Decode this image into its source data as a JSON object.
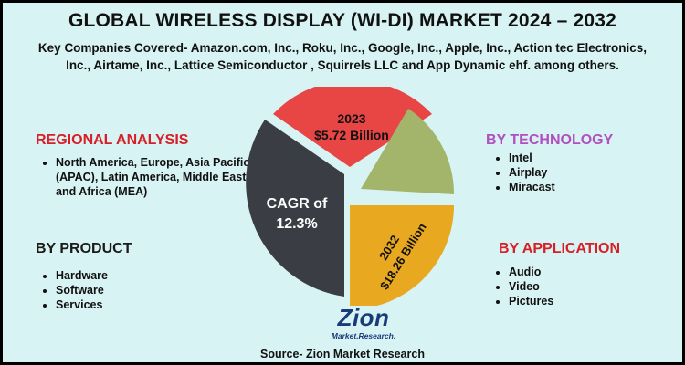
{
  "title": "GLOBAL WIRELESS DISPLAY (WI-DI) MARKET 2024 – 2032",
  "subtitle_line1": "Key Companies Covered- Amazon.com, Inc., Roku, Inc., Google, Inc., Apple, Inc., Action tec Electronics,",
  "subtitle_line2": "Inc., Airtame, Inc., Lattice Semiconductor , Squirrels LLC and App Dynamic ehf. among others.",
  "regional": {
    "heading": "REGIONAL ANALYSIS",
    "items": [
      "North America, Europe, Asia Pacific (APAC), Latin America, Middle East, and Africa (MEA)"
    ]
  },
  "product": {
    "heading": "BY PRODUCT",
    "items": [
      "Hardware",
      "Software",
      "Services"
    ]
  },
  "technology": {
    "heading": "BY TECHNOLOGY",
    "items": [
      "Intel",
      "Airplay",
      "Miracast"
    ]
  },
  "application": {
    "heading": "BY APPLICATION",
    "items": [
      "Audio",
      "Video",
      "Pictures"
    ]
  },
  "pie": {
    "year_2023": "2023",
    "value_2023": "$5.72 Billion",
    "cagr_line1": "CAGR of",
    "cagr_line2": "12.3%",
    "year_2032": "2032",
    "value_2032": "$18.26 Billion",
    "colors": {
      "red": "#e84545",
      "green": "#a3b56b",
      "dark": "#3a3e44",
      "orange": "#e8a81f"
    }
  },
  "logo": {
    "word": "Zion",
    "sub": "Market.Research."
  },
  "source": "Source- Zion Market Research",
  "colors": {
    "background": "#d8f3f3",
    "heading_red": "#d61f26",
    "heading_purple": "#b050c0"
  }
}
